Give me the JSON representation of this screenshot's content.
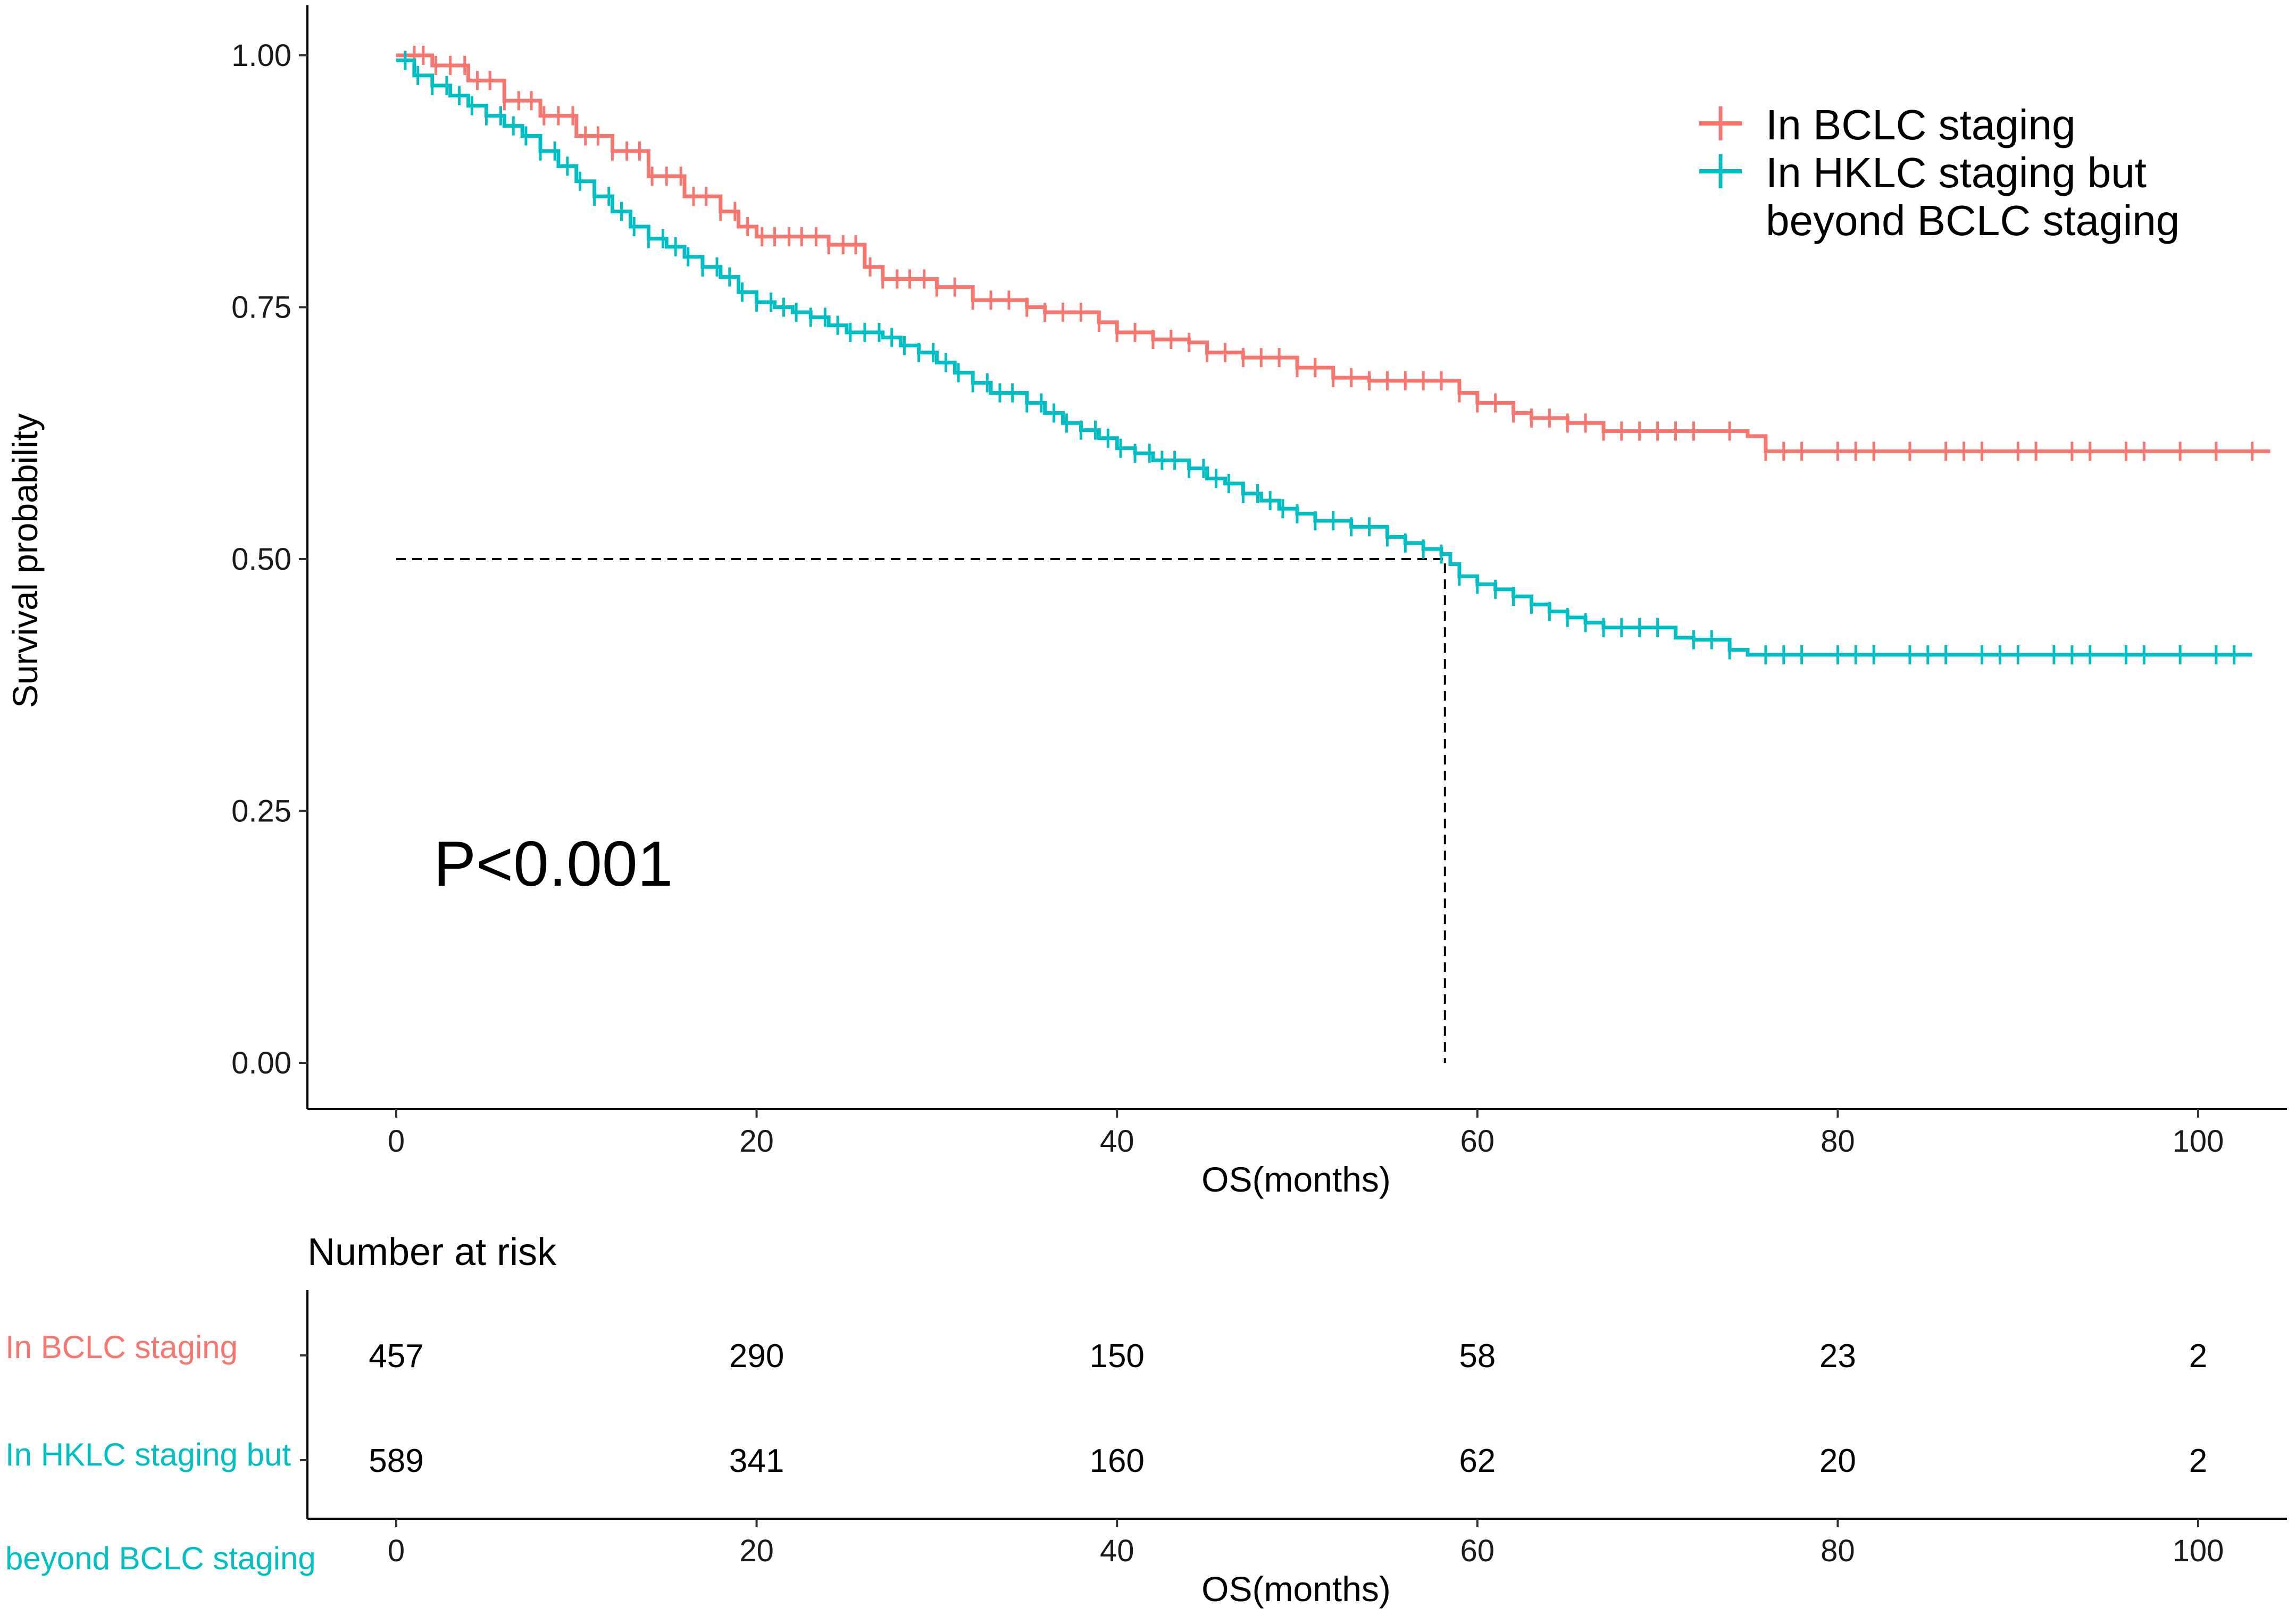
{
  "chart_data": {
    "type": "line",
    "subtype": "kaplan-meier",
    "ylabel": "Survival probability",
    "xlabel": "OS(months)",
    "xlim": [
      -5,
      104
    ],
    "ylim": [
      -0.05,
      1.05
    ],
    "x_ticks": [
      0,
      20,
      40,
      60,
      80,
      100
    ],
    "x_tick_labels": [
      "0",
      "20",
      "40",
      "60",
      "80",
      "100"
    ],
    "y_ticks": [
      0,
      0.25,
      0.5,
      0.75,
      1.0
    ],
    "y_tick_labels": [
      "0.00",
      "0.25",
      "0.50",
      "0.75",
      "1.00"
    ],
    "grid": false,
    "legend_position": "top-right",
    "annotation": "P<0.001",
    "median_line": {
      "y": 0.5,
      "x": 58.2
    },
    "series": [
      {
        "name": "In BCLC staging",
        "legend_label": [
          "In BCLC staging"
        ],
        "color": "#F8766D",
        "steps": [
          [
            0,
            1.0
          ],
          [
            2,
            0.99
          ],
          [
            4,
            0.975
          ],
          [
            6,
            0.955
          ],
          [
            8,
            0.94
          ],
          [
            10,
            0.92
          ],
          [
            12,
            0.905
          ],
          [
            14,
            0.88
          ],
          [
            16,
            0.86
          ],
          [
            18,
            0.845
          ],
          [
            19,
            0.83
          ],
          [
            20,
            0.82
          ],
          [
            24,
            0.812
          ],
          [
            26,
            0.79
          ],
          [
            27,
            0.778
          ],
          [
            30,
            0.77
          ],
          [
            32,
            0.757
          ],
          [
            35,
            0.75
          ],
          [
            36,
            0.745
          ],
          [
            39,
            0.735
          ],
          [
            40,
            0.725
          ],
          [
            42,
            0.718
          ],
          [
            44,
            0.715
          ],
          [
            45,
            0.705
          ],
          [
            47,
            0.7
          ],
          [
            50,
            0.69
          ],
          [
            52,
            0.68
          ],
          [
            54,
            0.677
          ],
          [
            57,
            0.677
          ],
          [
            59,
            0.665
          ],
          [
            60,
            0.655
          ],
          [
            62,
            0.645
          ],
          [
            63,
            0.64
          ],
          [
            65,
            0.635
          ],
          [
            67,
            0.627
          ],
          [
            70,
            0.627
          ],
          [
            72,
            0.627
          ],
          [
            75,
            0.622
          ],
          [
            76,
            0.607
          ],
          [
            104,
            0.607
          ]
        ],
        "censor_x": [
          1,
          1.5,
          2.2,
          3,
          3.8,
          4.5,
          5.2,
          6,
          6.8,
          7.5,
          8.2,
          9,
          9.8,
          10.5,
          11.2,
          12,
          12.8,
          13.5,
          14.2,
          15,
          15.8,
          16.5,
          17.2,
          18,
          18.8,
          19.5,
          20.3,
          21,
          21.8,
          22.5,
          23.3,
          24,
          24.8,
          25.5,
          26.3,
          27,
          27.8,
          28.5,
          29.3,
          30,
          31,
          32,
          33,
          34,
          35,
          36,
          37,
          38,
          39,
          40,
          41,
          42,
          43,
          44,
          45,
          46,
          47,
          48,
          49,
          50,
          51,
          52,
          53,
          54,
          55,
          56,
          57,
          58,
          59,
          60,
          61,
          62,
          63,
          64,
          65,
          66,
          67,
          68,
          69,
          70,
          71,
          72,
          74,
          76,
          77,
          78,
          80,
          81,
          82,
          84,
          86,
          87,
          88,
          90,
          91,
          93,
          94,
          96,
          97,
          99,
          101,
          103
        ]
      },
      {
        "name": "In HKLC staging but beyond BCLC staging",
        "legend_label": [
          "In HKLC staging but",
          "beyond BCLC staging"
        ],
        "color": "#00BFC4",
        "steps": [
          [
            0,
            0.995
          ],
          [
            1,
            0.98
          ],
          [
            2,
            0.97
          ],
          [
            3,
            0.96
          ],
          [
            4,
            0.95
          ],
          [
            5,
            0.94
          ],
          [
            6,
            0.93
          ],
          [
            7,
            0.92
          ],
          [
            8,
            0.905
          ],
          [
            9,
            0.89
          ],
          [
            10,
            0.875
          ],
          [
            11,
            0.86
          ],
          [
            12,
            0.845
          ],
          [
            13,
            0.83
          ],
          [
            14,
            0.818
          ],
          [
            15,
            0.81
          ],
          [
            16,
            0.8
          ],
          [
            17,
            0.79
          ],
          [
            18,
            0.78
          ],
          [
            19,
            0.765
          ],
          [
            20,
            0.755
          ],
          [
            21,
            0.75
          ],
          [
            22,
            0.745
          ],
          [
            23,
            0.74
          ],
          [
            24,
            0.732
          ],
          [
            25,
            0.725
          ],
          [
            27,
            0.72
          ],
          [
            28,
            0.712
          ],
          [
            29,
            0.705
          ],
          [
            30,
            0.695
          ],
          [
            31,
            0.685
          ],
          [
            32,
            0.675
          ],
          [
            33,
            0.665
          ],
          [
            35,
            0.655
          ],
          [
            36,
            0.645
          ],
          [
            37,
            0.635
          ],
          [
            38,
            0.628
          ],
          [
            39,
            0.62
          ],
          [
            40,
            0.61
          ],
          [
            41,
            0.605
          ],
          [
            42,
            0.598
          ],
          [
            44,
            0.59
          ],
          [
            45,
            0.58
          ],
          [
            46,
            0.575
          ],
          [
            47,
            0.565
          ],
          [
            48,
            0.558
          ],
          [
            49,
            0.55
          ],
          [
            50,
            0.545
          ],
          [
            51,
            0.538
          ],
          [
            53,
            0.532
          ],
          [
            55,
            0.522
          ],
          [
            56,
            0.516
          ],
          [
            57,
            0.51
          ],
          [
            58,
            0.505
          ],
          [
            58.5,
            0.495
          ],
          [
            59,
            0.483
          ],
          [
            60,
            0.475
          ],
          [
            61,
            0.47
          ],
          [
            62,
            0.463
          ],
          [
            63,
            0.455
          ],
          [
            64,
            0.448
          ],
          [
            65,
            0.442
          ],
          [
            66,
            0.437
          ],
          [
            67,
            0.432
          ],
          [
            71,
            0.422
          ],
          [
            72,
            0.42
          ],
          [
            73,
            0.42
          ],
          [
            74,
            0.41
          ],
          [
            75,
            0.405
          ],
          [
            103,
            0.405
          ]
        ],
        "censor_x": [
          0.5,
          1.2,
          2,
          2.8,
          3.5,
          4.2,
          5,
          5.8,
          6.5,
          7.2,
          8,
          8.8,
          9.5,
          10.2,
          11,
          11.8,
          12.5,
          13.2,
          14,
          14.8,
          15.5,
          16.2,
          17,
          17.8,
          18.5,
          19.2,
          20,
          20.8,
          21.5,
          22.2,
          23,
          23.8,
          24.5,
          25.2,
          26,
          26.8,
          27.5,
          28.2,
          29,
          29.8,
          30.5,
          31.2,
          32,
          32.8,
          33.5,
          34.2,
          35,
          35.8,
          36.5,
          37.2,
          38,
          38.8,
          39.5,
          40.2,
          41,
          41.8,
          42.5,
          43.2,
          44,
          44.8,
          45.5,
          46.2,
          47,
          47.8,
          48.5,
          49.2,
          50,
          51,
          52,
          53,
          54,
          55,
          56,
          57,
          58,
          59,
          60,
          61,
          62,
          63,
          64,
          65,
          66,
          67,
          68,
          69,
          70,
          72,
          73,
          74,
          76,
          77,
          78,
          80,
          81,
          82,
          84,
          85,
          86,
          88,
          89,
          90,
          92,
          93,
          94,
          96,
          97,
          99,
          101,
          102
        ]
      }
    ],
    "risk_table": {
      "title": "Number at risk",
      "xlabel": "OS(months)",
      "x_tick_labels": [
        "0",
        "20",
        "40",
        "60",
        "80",
        "100"
      ],
      "row_labels": [
        "In BCLC staging",
        "In HKLC staging but",
        "beyond BCLC staging"
      ],
      "rows": [
        {
          "name": "In BCLC staging",
          "color": "#F8766D",
          "values": [
            "457",
            "290",
            "150",
            "58",
            "23",
            "2"
          ]
        },
        {
          "name": "In HKLC staging but beyond BCLC staging",
          "color": "#00BFC4",
          "values": [
            "589",
            "341",
            "160",
            "62",
            "20",
            "2"
          ]
        }
      ]
    }
  }
}
